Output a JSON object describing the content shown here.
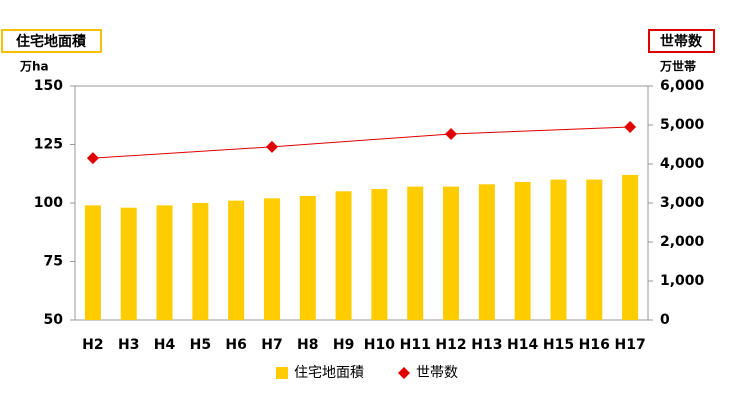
{
  "chart_data": {
    "type": "bar-line",
    "left_label": "住宅地面積",
    "left_unit": "万ha",
    "right_label": "世帯数",
    "right_unit": "万世帯",
    "categories": [
      "H2",
      "H3",
      "H4",
      "H5",
      "H6",
      "H7",
      "H8",
      "H9",
      "H10",
      "H11",
      "H12",
      "H13",
      "H14",
      "H15",
      "H16",
      "H17"
    ],
    "series": [
      {
        "name": "住宅地面積",
        "color": "#ffcc00",
        "kind": "bar",
        "values": [
          99,
          98,
          99,
          100,
          101,
          102,
          103,
          105,
          106,
          107,
          107,
          108,
          109,
          110,
          110,
          112
        ]
      },
      {
        "name": "世帯数",
        "color": "#e00000",
        "kind": "line",
        "axis": "y2",
        "connect_gaps": true,
        "values": [
          4150,
          null,
          null,
          null,
          null,
          4440,
          null,
          null,
          null,
          null,
          4770,
          null,
          null,
          null,
          null,
          4950
        ]
      }
    ],
    "ylim": [
      50,
      150
    ],
    "yticks": [
      50,
      75,
      100,
      125,
      150
    ],
    "y2lim": [
      0,
      6000
    ],
    "y2ticks": [
      0,
      {
        "value": 1000,
        "label": "1,000"
      },
      {
        "value": 2000,
        "label": "2,000"
      },
      {
        "value": 3000,
        "label": "3,000"
      },
      {
        "value": 4000,
        "label": "4,000"
      },
      {
        "value": 5000,
        "label": "5,000"
      },
      {
        "value": 6000,
        "label": "6,000"
      }
    ]
  }
}
